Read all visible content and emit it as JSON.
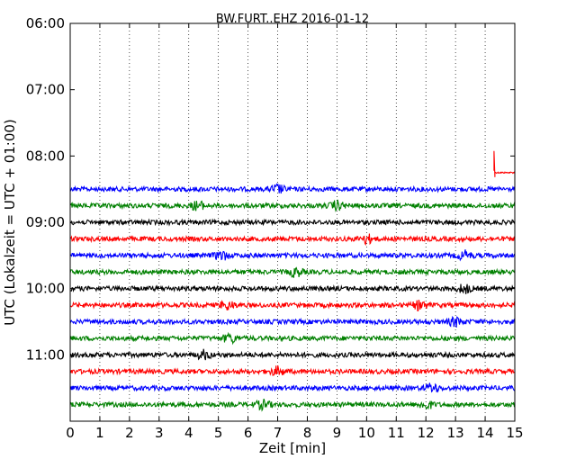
{
  "chart_data": {
    "type": "line",
    "subtype": "helicorder-seismogram",
    "title": "BW.FURT..EHZ 2016-01-12",
    "xlabel": "Zeit  [min]",
    "ylabel": "UTC (Lokalzeit = UTC + 01:00)",
    "xlim": [
      0,
      15
    ],
    "x_ticks": [
      "0",
      "1",
      "2",
      "3",
      "4",
      "5",
      "6",
      "7",
      "8",
      "9",
      "10",
      "11",
      "12",
      "13",
      "14",
      "15"
    ],
    "y_ticks": [
      "06:00",
      "07:00",
      "08:00",
      "09:00",
      "10:00",
      "11:00"
    ],
    "grid": "vertical dotted lines at each minute",
    "line_duration_min": 15,
    "color_cycle": [
      "#ff0000",
      "#0000ff",
      "#008000",
      "#000000"
    ],
    "traces": [
      {
        "start": "08:15",
        "color": "#ff0000",
        "data_from_min": 14.3,
        "note": "signal starts with a step transient, then flat"
      },
      {
        "start": "08:30",
        "color": "#0000ff",
        "bursts_at_min": [
          7.0
        ]
      },
      {
        "start": "08:45",
        "color": "#008000",
        "bursts_at_min": [
          4.3,
          9.0
        ]
      },
      {
        "start": "09:00",
        "color": "#000000",
        "bursts_at_min": []
      },
      {
        "start": "09:15",
        "color": "#ff0000",
        "bursts_at_min": [
          10.0
        ]
      },
      {
        "start": "09:30",
        "color": "#0000ff",
        "bursts_at_min": [
          5.1,
          13.3
        ]
      },
      {
        "start": "09:45",
        "color": "#008000",
        "bursts_at_min": [
          7.6
        ]
      },
      {
        "start": "10:00",
        "color": "#000000",
        "bursts_at_min": [
          13.3
        ]
      },
      {
        "start": "10:15",
        "color": "#ff0000",
        "bursts_at_min": [
          5.3,
          11.8
        ]
      },
      {
        "start": "10:30",
        "color": "#0000ff",
        "bursts_at_min": [
          13.0
        ]
      },
      {
        "start": "10:45",
        "color": "#008000",
        "bursts_at_min": [
          5.4
        ]
      },
      {
        "start": "11:00",
        "color": "#000000",
        "bursts_at_min": [
          4.5
        ]
      },
      {
        "start": "11:15",
        "color": "#ff0000",
        "bursts_at_min": [
          7.0
        ]
      },
      {
        "start": "11:30",
        "color": "#0000ff",
        "bursts_at_min": [
          12.2
        ]
      },
      {
        "start": "11:45",
        "color": "#008000",
        "bursts_at_min": [
          6.5,
          12.0
        ]
      }
    ]
  }
}
